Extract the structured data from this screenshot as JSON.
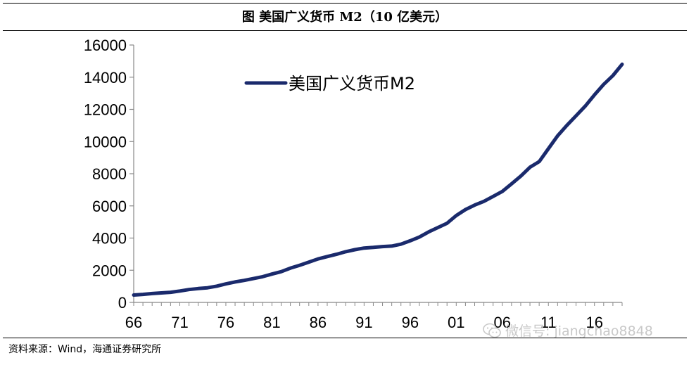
{
  "title": "图  美国广义货币 M2（10 亿美元）",
  "source": "资料来源：Wind，海通证券研究所",
  "watermark": {
    "text": "微信号: jiangchao8848",
    "icon": "wechat-icon"
  },
  "colors": {
    "line": "#1a2a6c",
    "axis": "#888888"
  },
  "chart_data": {
    "type": "line",
    "title": "",
    "xlabel": "",
    "ylabel": "",
    "ylim": [
      0,
      16000
    ],
    "yticks": [
      0,
      2000,
      4000,
      6000,
      8000,
      10000,
      12000,
      14000,
      16000
    ],
    "xlim": [
      1966,
      2019
    ],
    "xtick_labels": [
      "66",
      "71",
      "76",
      "81",
      "86",
      "91",
      "96",
      "01",
      "06",
      "11",
      "16"
    ],
    "xtick_years": [
      1966,
      1971,
      1976,
      1981,
      1986,
      1991,
      1996,
      2001,
      2006,
      2011,
      2016
    ],
    "grid": false,
    "legend": "top-left",
    "series": [
      {
        "name": "美国广义货币M2",
        "x": [
          1966,
          1967,
          1968,
          1969,
          1970,
          1971,
          1972,
          1973,
          1974,
          1975,
          1976,
          1977,
          1978,
          1979,
          1980,
          1981,
          1982,
          1983,
          1984,
          1985,
          1986,
          1987,
          1988,
          1989,
          1990,
          1991,
          1992,
          1993,
          1994,
          1995,
          1996,
          1997,
          1998,
          1999,
          2000,
          2001,
          2002,
          2003,
          2004,
          2005,
          2006,
          2007,
          2008,
          2009,
          2010,
          2011,
          2012,
          2013,
          2014,
          2015,
          2016,
          2017,
          2018,
          2019
        ],
        "values": [
          460,
          500,
          550,
          590,
          630,
          710,
          800,
          860,
          910,
          1010,
          1150,
          1270,
          1370,
          1480,
          1600,
          1760,
          1910,
          2130,
          2310,
          2500,
          2700,
          2850,
          2990,
          3150,
          3280,
          3380,
          3420,
          3470,
          3500,
          3620,
          3830,
          4060,
          4380,
          4650,
          4920,
          5400,
          5770,
          6050,
          6280,
          6590,
          6900,
          7370,
          7850,
          8400,
          8750,
          9550,
          10350,
          11000,
          11600,
          12200,
          12900,
          13550,
          14100,
          14800
        ]
      }
    ]
  }
}
